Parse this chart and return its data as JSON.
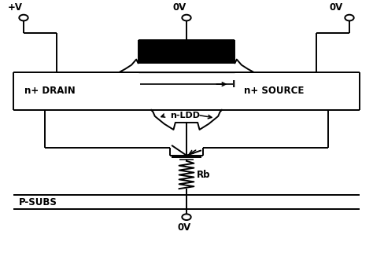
{
  "bg_color": "#ffffff",
  "line_color": "#000000",
  "gate_fill": "#000000",
  "labels": {
    "plus_v": "+V",
    "ov_gate": "0V",
    "ov_source": "0V",
    "ov_bottom": "0V",
    "drain": "n+ DRAIN",
    "source": "n+ SOURCE",
    "ldd": "n-LDD",
    "current": "I",
    "psubs": "P-SUBS",
    "rb": "Rb"
  },
  "figsize": [
    4.74,
    3.27
  ],
  "dpi": 100
}
